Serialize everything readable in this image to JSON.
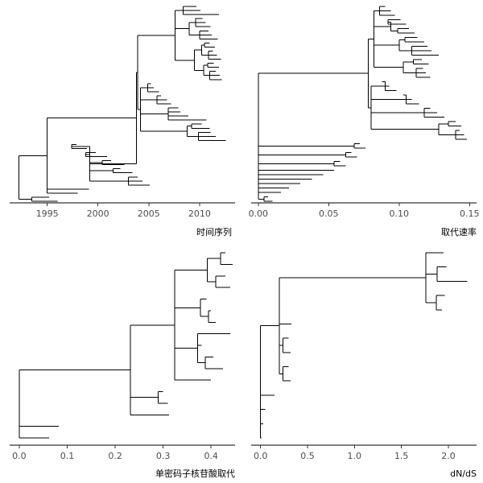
{
  "chart_data": [
    {
      "type": "tree",
      "xlabel": "时间序列",
      "xlim": [
        1991.3,
        2013.5
      ],
      "xticks": [
        1995,
        2000,
        2005,
        2010
      ],
      "xtick_labels": [
        "1995",
        "2000",
        "2005",
        "2010"
      ]
    },
    {
      "type": "tree",
      "xlabel": "取代速率",
      "xlim": [
        -0.005,
        0.155
      ],
      "xticks": [
        0,
        0.05,
        0.1,
        0.15
      ],
      "xtick_labels": [
        "0.00",
        "0.05",
        "0.10",
        "0.15"
      ]
    },
    {
      "type": "tree",
      "xlabel": "单密码子核苷酸取代",
      "xlim": [
        -0.02,
        0.45
      ],
      "xticks": [
        0,
        0.1,
        0.2,
        0.3,
        0.4
      ],
      "xtick_labels": [
        "0.0",
        "0.1",
        "0.2",
        "0.3",
        "0.4"
      ]
    },
    {
      "type": "tree",
      "xlabel": "dN/dS",
      "xlim": [
        -0.1,
        2.3
      ],
      "xticks": [
        0,
        0.5,
        1,
        1.5,
        2
      ],
      "xtick_labels": [
        "0.0",
        "0.5",
        "1.0",
        "1.5",
        "2.0"
      ]
    }
  ]
}
